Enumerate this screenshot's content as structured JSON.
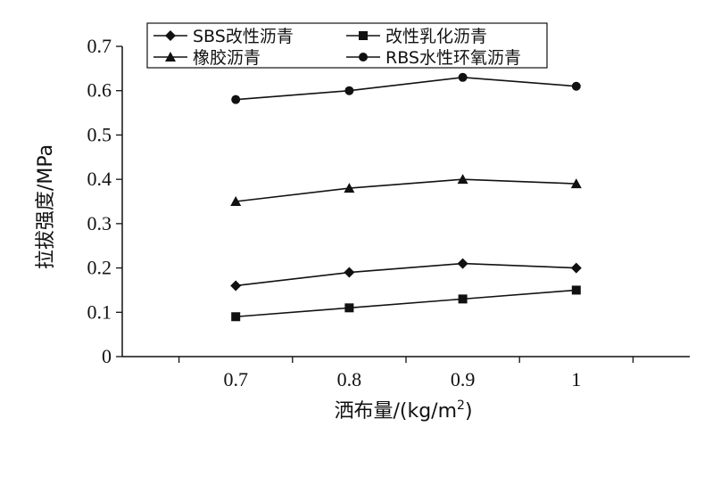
{
  "chart_data": {
    "type": "line",
    "x": [
      0.7,
      0.8,
      0.9,
      1
    ],
    "x_tick_labels": [
      "0.7",
      "0.8",
      "0.9",
      "1"
    ],
    "y_tick_labels": [
      "0",
      "0.1",
      "0.2",
      "0.3",
      "0.4",
      "0.5",
      "0.6",
      "0.7"
    ],
    "ylim": [
      0,
      0.7
    ],
    "xlabel": "洒布量/(kg/m",
    "xlabel_superscript": "2",
    "xlabel_suffix": ")",
    "ylabel": "拉拔强度/MPa",
    "grid": false,
    "legend_position": "top",
    "series": [
      {
        "name": "SBS改性沥青",
        "marker": "diamond",
        "values": [
          0.16,
          0.19,
          0.21,
          0.2
        ]
      },
      {
        "name": "改性乳化沥青",
        "marker": "square",
        "values": [
          0.09,
          0.11,
          0.13,
          0.15
        ]
      },
      {
        "name": "橡胶沥青",
        "marker": "triangle",
        "values": [
          0.35,
          0.38,
          0.4,
          0.39
        ]
      },
      {
        "name": "RBS水性环氧沥青",
        "marker": "circle",
        "values": [
          0.58,
          0.6,
          0.63,
          0.61
        ]
      }
    ]
  }
}
